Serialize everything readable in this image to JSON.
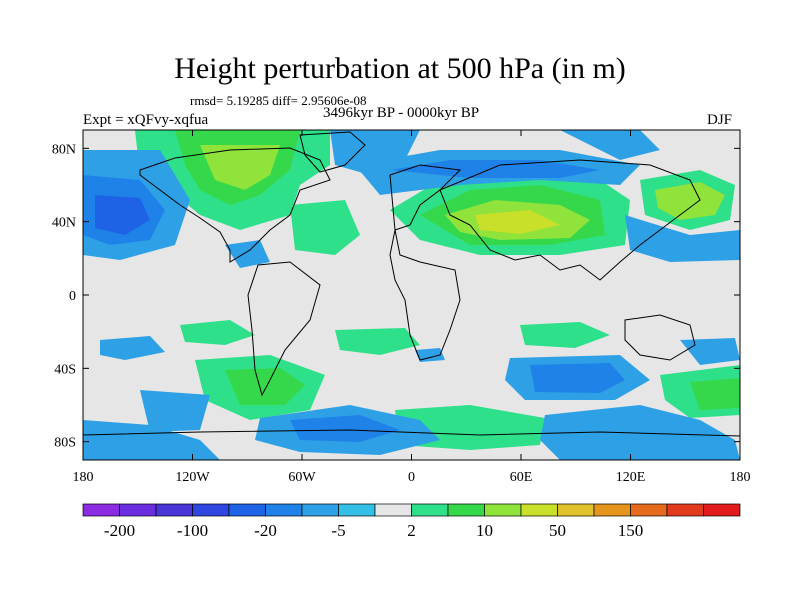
{
  "title": "Height perturbation at 500 hPa (in m)",
  "stats": "rmsd= 5.19285 diff= 2.95606e-08",
  "experiment": "Expt = xQFvy-xqfua",
  "period": "3496kyr BP - 0000kyr BP",
  "season": "DJF",
  "axes": {
    "x_ticks": [
      "180",
      "120W",
      "60W",
      "0",
      "60E",
      "120E",
      "180"
    ],
    "y_ticks": [
      "80N",
      "40N",
      "0",
      "40S",
      "80S"
    ]
  },
  "colorbar": {
    "colors": [
      "#8b2be2",
      "#6a2ee0",
      "#4a35d8",
      "#2f47e0",
      "#1e63e6",
      "#1f82e8",
      "#2ea1e6",
      "#33bfe6",
      "#e6e6e6",
      "#2fe08a",
      "#36d84b",
      "#8fe33a",
      "#c9e02a",
      "#e0c22a",
      "#e5951c",
      "#e56a1c",
      "#e23a1c",
      "#e21c1c"
    ],
    "labels": [
      "-200",
      "-100",
      "-20",
      "-5",
      "2",
      "10",
      "50",
      "150"
    ]
  },
  "map_colors": {
    "ocean_land_fill": "#e6e6e6",
    "neg_light": "#2ea1e6",
    "neg_mid": "#1f82e8",
    "neg_strong": "#1e63e6",
    "pos_light": "#2fe08a",
    "pos_mid": "#36d84b",
    "pos_strong": "#8fe33a",
    "pos_peak": "#c9e02a"
  }
}
